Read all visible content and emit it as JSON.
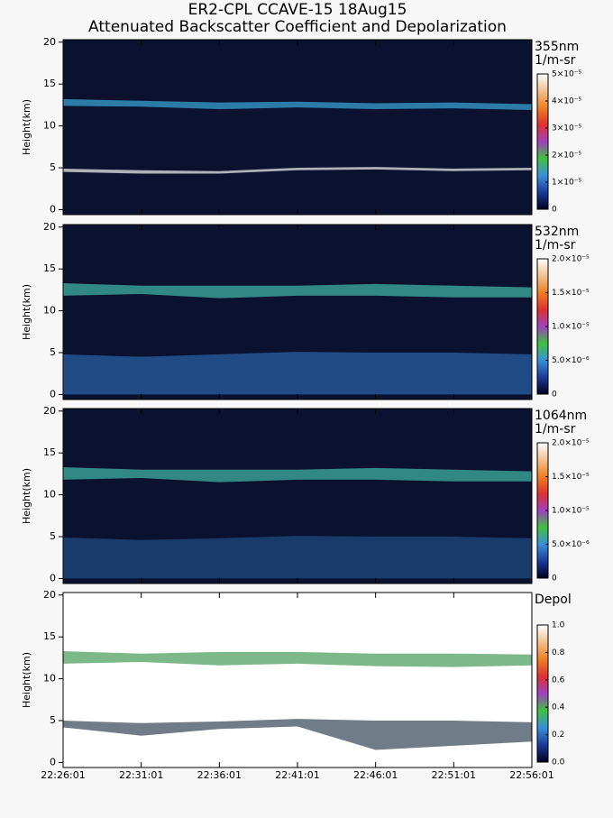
{
  "chart_data": [
    {
      "type": "heatmap",
      "title": "ER2-CPL CCAVE-15 18Aug15",
      "subtitle": "Attenuated Backscatter Coefficient and Depolarization",
      "ylabel": "Height(km)",
      "ylim": [
        -0.6,
        20.3
      ],
      "yticks": [
        0,
        5,
        10,
        15,
        20
      ],
      "background": "#0b1230",
      "layers": [
        {
          "color": "#3aa0d0",
          "top": [
            13.2,
            13.0,
            12.8,
            12.9,
            12.7,
            12.8,
            12.6
          ],
          "base": [
            12.4,
            12.3,
            12.0,
            12.2,
            12.0,
            12.1,
            11.9
          ]
        },
        {
          "color": "#e8e8e8",
          "top": [
            4.9,
            4.7,
            4.6,
            5.0,
            5.1,
            4.9,
            5.0
          ],
          "base": [
            4.5,
            4.3,
            4.3,
            4.7,
            4.8,
            4.6,
            4.7
          ]
        }
      ],
      "colorbar": {
        "label": [
          "355nm",
          "1/m-sr"
        ],
        "lim": [
          0,
          5e-05
        ],
        "ticks": [
          0,
          {
            "value": 1e-05,
            "label": "1×10⁻⁵"
          },
          {
            "value": 2e-05,
            "label": "2×10⁻⁵"
          },
          {
            "value": 3e-05,
            "label": "3×10⁻⁵"
          },
          {
            "value": 4e-05,
            "label": "4×10⁻⁵"
          },
          {
            "value": 5e-05,
            "label": "5×10⁻⁵"
          }
        ],
        "colors": [
          "#000020",
          "#1a3a9a",
          "#3a90d8",
          "#40c040",
          "#a040c0",
          "#e03030",
          "#f08020",
          "#f0c090",
          "#ffffff"
        ]
      }
    },
    {
      "type": "heatmap",
      "ylabel": "Height(km)",
      "ylim": [
        -0.6,
        20.3
      ],
      "yticks": [
        0,
        5,
        10,
        15,
        20
      ],
      "background": "#0b1230",
      "layers": [
        {
          "color": "#2a5fa0",
          "top": [
            4.8,
            4.5,
            4.8,
            5.1,
            5.0,
            5.0,
            4.8
          ],
          "base": [
            0,
            0,
            0,
            0,
            0,
            0,
            0
          ]
        },
        {
          "color": "#40b0a0",
          "top": [
            13.3,
            13.0,
            13.0,
            13.0,
            13.2,
            13.0,
            12.8
          ],
          "base": [
            11.8,
            12.0,
            11.5,
            11.8,
            11.8,
            11.6,
            11.6
          ]
        }
      ],
      "colorbar": {
        "label": [
          "532nm",
          "1/m-sr"
        ],
        "lim": [
          0,
          2e-05
        ],
        "ticks": [
          0,
          {
            "value": 5e-06,
            "label": "5.0×10⁻⁶"
          },
          {
            "value": 1e-05,
            "label": "1.0×10⁻⁵"
          },
          {
            "value": 1.5e-05,
            "label": "1.5×10⁻⁵"
          },
          {
            "value": 2e-05,
            "label": "2.0×10⁻⁵"
          }
        ],
        "colors": [
          "#000020",
          "#1a3a9a",
          "#3a90d8",
          "#40c040",
          "#a040c0",
          "#e03030",
          "#f08020",
          "#f0c090",
          "#ffffff"
        ]
      }
    },
    {
      "type": "heatmap",
      "ylabel": "Height(km)",
      "ylim": [
        -0.6,
        20.3
      ],
      "yticks": [
        0,
        5,
        10,
        15,
        20
      ],
      "background": "#0b1230",
      "layers": [
        {
          "color": "#1f4a80",
          "top": [
            4.9,
            4.6,
            4.8,
            5.1,
            5.0,
            5.0,
            4.8
          ],
          "base": [
            0,
            0,
            0,
            0,
            0,
            0,
            0
          ]
        },
        {
          "color": "#40b0a0",
          "top": [
            13.3,
            13.0,
            13.0,
            13.0,
            13.2,
            13.0,
            12.8
          ],
          "base": [
            11.8,
            12.0,
            11.5,
            11.8,
            11.8,
            11.6,
            11.6
          ]
        }
      ],
      "colorbar": {
        "label": [
          "1064nm",
          "1/m-sr"
        ],
        "lim": [
          0,
          2e-05
        ],
        "ticks": [
          0,
          {
            "value": 5e-06,
            "label": "5.0×10⁻⁶"
          },
          {
            "value": 1e-05,
            "label": "1.0×10⁻⁵"
          },
          {
            "value": 1.5e-05,
            "label": "1.5×10⁻⁵"
          },
          {
            "value": 2e-05,
            "label": "2.0×10⁻⁵"
          }
        ],
        "colors": [
          "#000020",
          "#1a3a9a",
          "#3a90d8",
          "#40c040",
          "#a040c0",
          "#e03030",
          "#f08020",
          "#f0c090",
          "#ffffff"
        ]
      }
    },
    {
      "type": "heatmap",
      "ylabel": "Height(km)",
      "ylim": [
        -0.6,
        20.3
      ],
      "yticks": [
        0,
        5,
        10,
        15,
        20
      ],
      "background": "#ffffff",
      "x": [
        "22:26:01",
        "22:31:01",
        "22:36:01",
        "22:41:01",
        "22:46:01",
        "22:51:01",
        "22:56:01"
      ],
      "layers": [
        {
          "color": "#50a060",
          "top": [
            13.3,
            13.0,
            13.2,
            13.2,
            13.0,
            13.0,
            12.9
          ],
          "base": [
            11.8,
            12.0,
            11.6,
            11.8,
            11.5,
            11.4,
            11.6
          ]
        },
        {
          "color": "#405060",
          "top": [
            5.0,
            4.7,
            4.9,
            5.2,
            5.0,
            5.0,
            4.8
          ],
          "base": [
            4.2,
            3.2,
            4.0,
            4.3,
            1.5,
            2.0,
            2.5
          ]
        }
      ],
      "colorbar": {
        "label": [
          "Depol"
        ],
        "lim": [
          0,
          1
        ],
        "ticks": [
          {
            "value": 0,
            "label": "0.0"
          },
          0.2,
          0.4,
          0.6,
          0.8,
          {
            "value": 1,
            "label": "1.0"
          }
        ],
        "colors": [
          "#000020",
          "#1a3a9a",
          "#3a90d8",
          "#40c040",
          "#a040c0",
          "#e03030",
          "#f08020",
          "#f0c090",
          "#ffffff"
        ]
      }
    }
  ]
}
